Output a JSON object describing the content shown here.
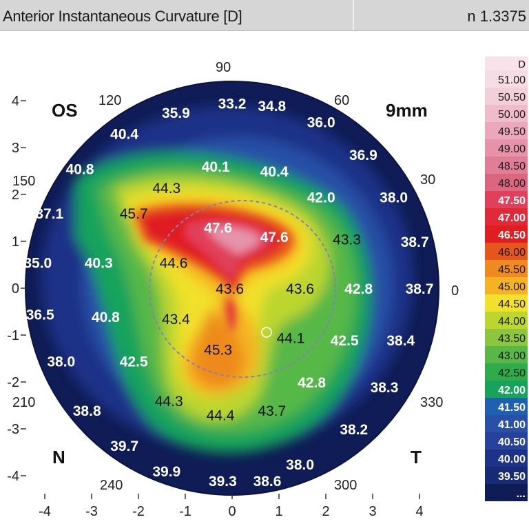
{
  "header": {
    "title": "Anterior Instantaneous Curvature [D]",
    "refractive_index": "n 1.3375"
  },
  "map": {
    "eye": "OS",
    "zone": "9mm",
    "nasal": "N",
    "temporal": "T",
    "angle_labels": [
      "90",
      "120",
      "60",
      "150",
      "30",
      "0",
      "210",
      "330",
      "240",
      "300"
    ]
  },
  "chart_data": {
    "type": "heatmap",
    "title": "Anterior Instantaneous Curvature [D]",
    "unit": "D",
    "xlim": [
      -4,
      4
    ],
    "ylim": [
      -4,
      4
    ],
    "x_ticks": [
      "-4",
      "-3",
      "-2",
      "-1",
      "0",
      "1",
      "2",
      "3",
      "4"
    ],
    "y_ticks": [
      "4",
      "3",
      "2",
      "1",
      "0",
      "-1",
      "-2",
      "-3",
      "-4"
    ],
    "colorscale": [
      {
        "label": "51.00",
        "color": "#f6dde5"
      },
      {
        "label": "50.50",
        "color": "#f3cfd9"
      },
      {
        "label": "50.00",
        "color": "#f0bccc"
      },
      {
        "label": "49.50",
        "color": "#eba7bb"
      },
      {
        "label": "49.00",
        "color": "#e693aa"
      },
      {
        "label": "48.50",
        "color": "#e07e97"
      },
      {
        "label": "48.00",
        "color": "#da6680"
      },
      {
        "label": "47.50",
        "color": "#e0405a"
      },
      {
        "label": "47.00",
        "color": "#e02a3a"
      },
      {
        "label": "46.50",
        "color": "#e01e22"
      },
      {
        "label": "46.00",
        "color": "#e5561d"
      },
      {
        "label": "45.50",
        "color": "#ee8a1f"
      },
      {
        "label": "45.00",
        "color": "#f5b324"
      },
      {
        "label": "44.50",
        "color": "#f1e12c"
      },
      {
        "label": "44.00",
        "color": "#bcd62e"
      },
      {
        "label": "43.50",
        "color": "#8cc63e"
      },
      {
        "label": "43.00",
        "color": "#57b847"
      },
      {
        "label": "42.50",
        "color": "#2fab4b"
      },
      {
        "label": "42.00",
        "color": "#17a35c"
      },
      {
        "label": "41.50",
        "color": "#2060b0"
      },
      {
        "label": "41.00",
        "color": "#2850a6"
      },
      {
        "label": "40.50",
        "color": "#27429a"
      },
      {
        "label": "40.00",
        "color": "#1e3388"
      },
      {
        "label": "39.50",
        "color": "#172a74"
      },
      {
        "label": "...",
        "color": "#0f1c55"
      }
    ],
    "points": [
      {
        "x": 0.0,
        "y": 3.95,
        "value": "33.2"
      },
      {
        "x": 0.85,
        "y": 3.9,
        "value": "34.8"
      },
      {
        "x": -1.2,
        "y": 3.75,
        "value": "35.9"
      },
      {
        "x": 1.9,
        "y": 3.55,
        "value": "36.0"
      },
      {
        "x": -2.3,
        "y": 3.3,
        "value": "40.4"
      },
      {
        "x": 2.8,
        "y": 2.85,
        "value": "36.9"
      },
      {
        "x": -3.25,
        "y": 2.55,
        "value": "40.8"
      },
      {
        "x": -0.35,
        "y": 2.6,
        "value": "40.1"
      },
      {
        "x": 0.9,
        "y": 2.5,
        "value": "40.4"
      },
      {
        "x": -1.4,
        "y": 2.15,
        "value": "44.3"
      },
      {
        "x": 3.45,
        "y": 1.95,
        "value": "38.0"
      },
      {
        "x": 1.9,
        "y": 1.95,
        "value": "42.0"
      },
      {
        "x": -3.9,
        "y": 1.6,
        "value": "37.1"
      },
      {
        "x": -2.1,
        "y": 1.6,
        "value": "45.7"
      },
      {
        "x": -0.3,
        "y": 1.3,
        "value": "47.6"
      },
      {
        "x": 0.9,
        "y": 1.1,
        "value": "47.6"
      },
      {
        "x": 2.45,
        "y": 1.05,
        "value": "43.3"
      },
      {
        "x": 3.9,
        "y": 1.0,
        "value": "38.7"
      },
      {
        "x": -4.15,
        "y": 0.55,
        "value": "35.0"
      },
      {
        "x": -2.85,
        "y": 0.55,
        "value": "40.3"
      },
      {
        "x": -1.25,
        "y": 0.55,
        "value": "44.6"
      },
      {
        "x": -0.05,
        "y": 0.0,
        "value": "43.6"
      },
      {
        "x": 1.45,
        "y": 0.0,
        "value": "43.6"
      },
      {
        "x": 2.7,
        "y": 0.0,
        "value": "42.8"
      },
      {
        "x": 4.0,
        "y": 0.0,
        "value": "38.7"
      },
      {
        "x": -4.1,
        "y": -0.55,
        "value": "36.5"
      },
      {
        "x": -2.7,
        "y": -0.6,
        "value": "40.8"
      },
      {
        "x": -1.2,
        "y": -0.65,
        "value": "43.4"
      },
      {
        "x": 1.25,
        "y": -1.05,
        "value": "44.1"
      },
      {
        "x": 2.4,
        "y": -1.1,
        "value": "42.5"
      },
      {
        "x": 3.6,
        "y": -1.1,
        "value": "38.4"
      },
      {
        "x": -3.65,
        "y": -1.55,
        "value": "38.0"
      },
      {
        "x": -2.1,
        "y": -1.55,
        "value": "42.5"
      },
      {
        "x": -0.3,
        "y": -1.3,
        "value": "45.3"
      },
      {
        "x": 1.7,
        "y": -2.0,
        "value": "42.8"
      },
      {
        "x": 3.25,
        "y": -2.1,
        "value": "38.3"
      },
      {
        "x": -1.35,
        "y": -2.4,
        "value": "44.3"
      },
      {
        "x": -3.1,
        "y": -2.6,
        "value": "38.8"
      },
      {
        "x": -0.25,
        "y": -2.7,
        "value": "44.4"
      },
      {
        "x": 0.85,
        "y": -2.6,
        "value": "43.7"
      },
      {
        "x": 2.6,
        "y": -3.0,
        "value": "38.2"
      },
      {
        "x": -2.3,
        "y": -3.35,
        "value": "39.7"
      },
      {
        "x": -1.4,
        "y": -3.9,
        "value": "39.9"
      },
      {
        "x": 1.45,
        "y": -3.75,
        "value": "38.0"
      },
      {
        "x": -0.2,
        "y": -4.1,
        "value": "39.3"
      },
      {
        "x": 0.75,
        "y": -4.1,
        "value": "38.6"
      }
    ]
  }
}
